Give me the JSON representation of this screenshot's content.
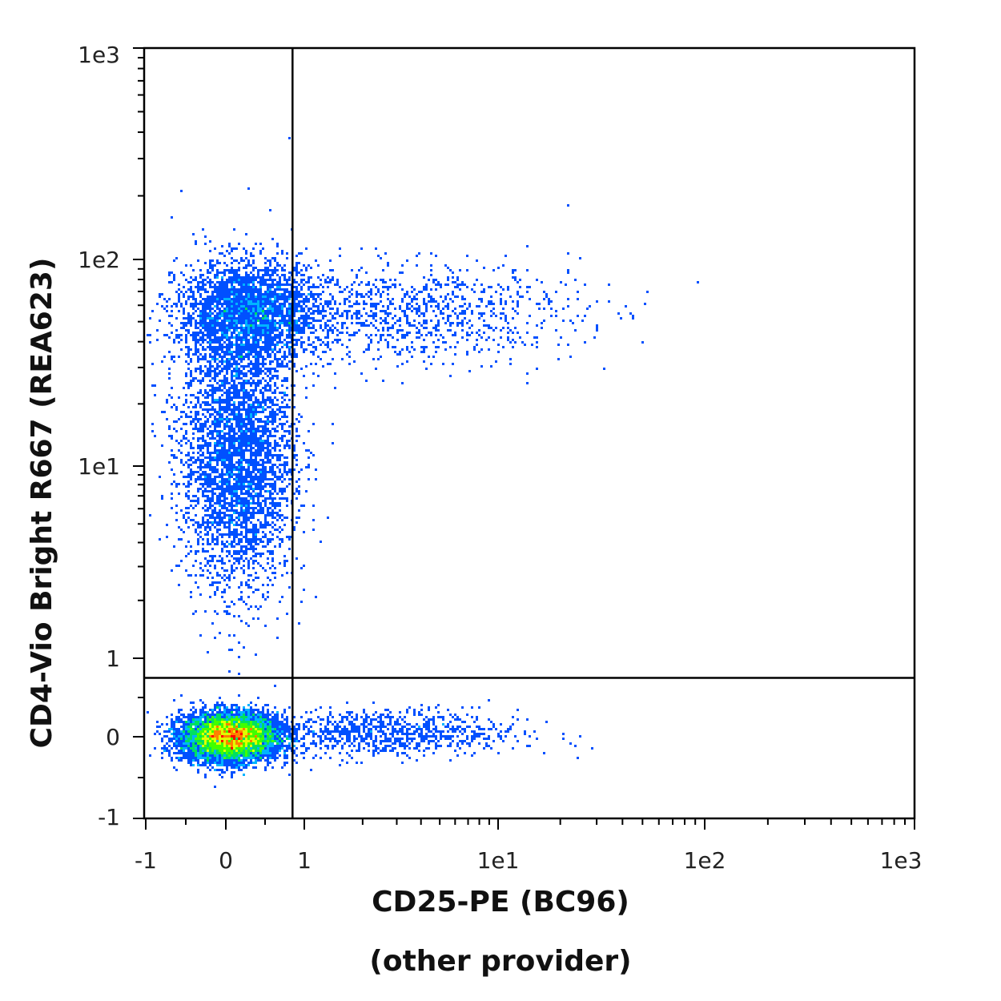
{
  "chart_data": {
    "type": "scatter",
    "subtype": "flow-cytometry density dot plot",
    "xlabel": "CD25-PE (BC96)",
    "xlabel_line2": "(other provider)",
    "ylabel": "CD4-Vio Bright R667 (REA623)",
    "x_scale": "biexponential (linear near 0, log above 1)",
    "y_scale": "biexponential (linear near 0, log above 1)",
    "xlim": [
      -1,
      1000
    ],
    "ylim": [
      -1,
      1000
    ],
    "x_ticks": [
      {
        "value": -1,
        "label": "-1"
      },
      {
        "value": 0,
        "label": "0"
      },
      {
        "value": 1,
        "label": "1"
      },
      {
        "value": 10,
        "label": "1e1"
      },
      {
        "value": 100,
        "label": "1e2"
      },
      {
        "value": 1000,
        "label": "1e3"
      }
    ],
    "y_ticks": [
      {
        "value": -1,
        "label": "-1"
      },
      {
        "value": 0,
        "label": "0"
      },
      {
        "value": 1,
        "label": "1"
      },
      {
        "value": 10,
        "label": "1e1"
      },
      {
        "value": 100,
        "label": "1e2"
      },
      {
        "value": 1000,
        "label": "1e3"
      }
    ],
    "quadrant_gate": {
      "x": 0.85,
      "y": 0.75
    },
    "populations": [
      {
        "x_center": 0.05,
        "y_center": 0.0,
        "x_spread": 0.3,
        "y_spread": 0.15,
        "relative_density": 1.0
      },
      {
        "x_center": 0.15,
        "y_center": 12,
        "x_spread": 0.35,
        "y_spread_log": 0.35,
        "relative_density": 0.45
      },
      {
        "x_center": 0.3,
        "y_center": 55,
        "x_spread": 0.45,
        "y_spread_log": 0.12,
        "relative_density": 0.3
      },
      {
        "x_center": 3,
        "y_center": 55,
        "x_spread_log": 0.45,
        "y_spread_log": 0.12,
        "relative_density": 0.12
      },
      {
        "x_center": 2.5,
        "y_center": 0.05,
        "x_spread_log": 0.35,
        "y_spread": 0.15,
        "relative_density": 0.1
      }
    ],
    "density_colors": [
      "#0000ff",
      "#0050ff",
      "#00b4ff",
      "#00e060",
      "#40ff00",
      "#e0ff00",
      "#ff8000",
      "#ff0000"
    ],
    "gate_color": "#000000",
    "grid": false,
    "legend": "none"
  }
}
